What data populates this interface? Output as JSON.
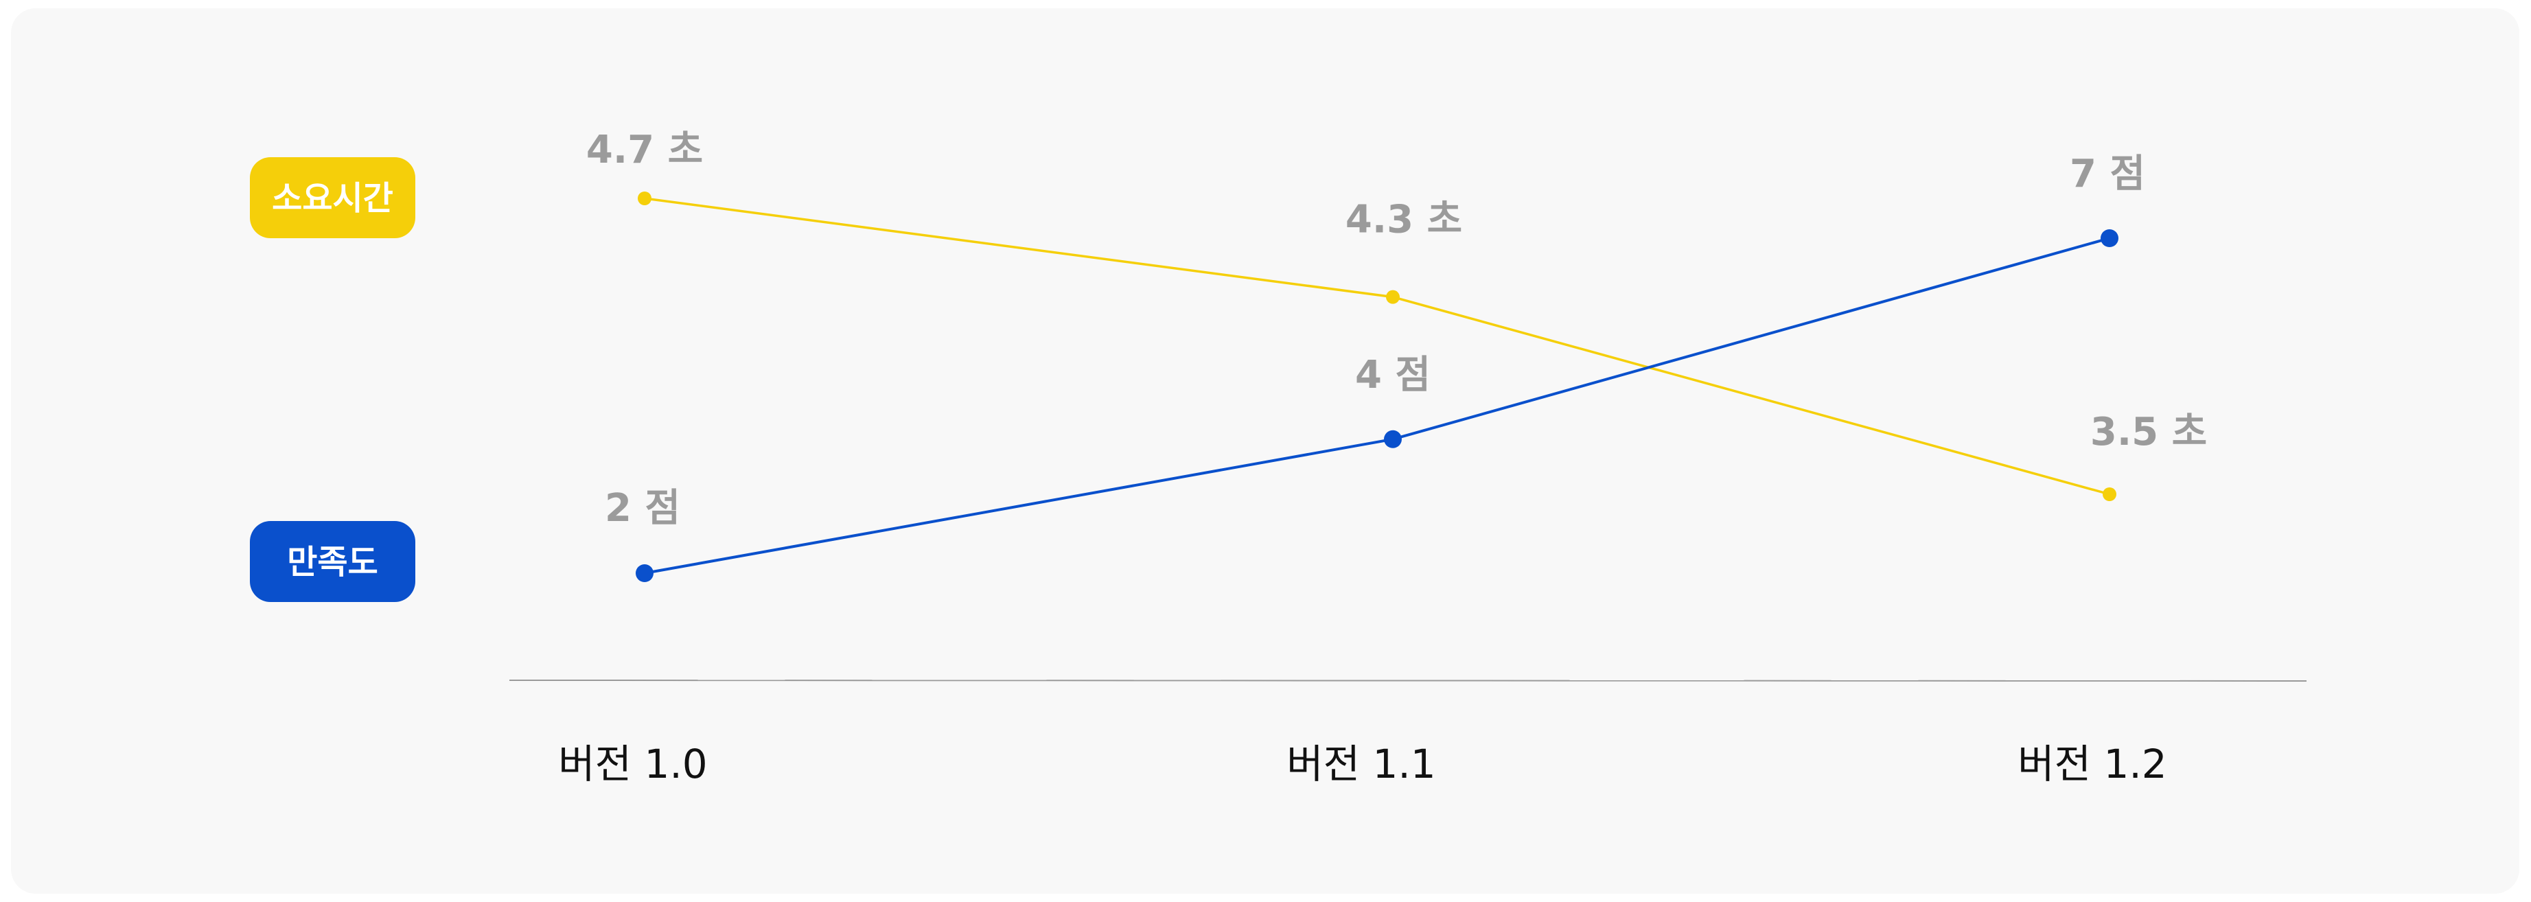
{
  "colors": {
    "background": "#f8f8f8",
    "time_series": "#f5cf0a",
    "satisfaction_series": "#0a50cc",
    "value_label": "#9b9b9b",
    "axis_line": "#9a9a9a",
    "category_label": "#111111",
    "legend_text": "#ffffff"
  },
  "chart_data": {
    "type": "line",
    "categories": [
      "버전 1.0",
      "버전 1.1",
      "버전 1.2"
    ],
    "series": [
      {
        "name": "소요시간",
        "values": [
          4.7,
          4.3,
          3.5
        ],
        "labels": [
          "4.7 초",
          "4.3 초",
          "3.5 초"
        ],
        "color": "#f5cf0a"
      },
      {
        "name": "만족도",
        "values": [
          2,
          4,
          7
        ],
        "labels": [
          "2 점",
          "4 점",
          "7 점"
        ],
        "color": "#0a50cc"
      }
    ],
    "title": "",
    "xlabel": "",
    "ylabel": "",
    "grid": false,
    "legend": "left"
  }
}
